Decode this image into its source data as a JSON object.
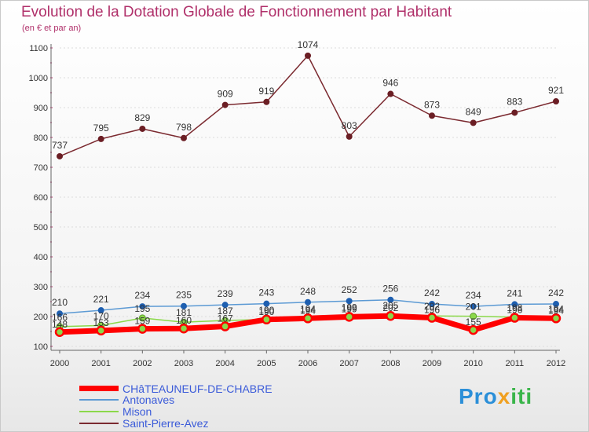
{
  "chart_data": {
    "type": "line",
    "title": "Evolution de la Dotation Globale de Fonctionnement par Habitant",
    "subtitle": "(en € et par an)",
    "xlabel": "",
    "ylabel": "",
    "ylim": [
      100,
      1100
    ],
    "yticks": [
      100,
      200,
      300,
      400,
      500,
      600,
      700,
      800,
      900,
      1000,
      1100
    ],
    "categories": [
      "2000",
      "2001",
      "2002",
      "2003",
      "2004",
      "2005",
      "2006",
      "2007",
      "2008",
      "2009",
      "2010",
      "2011",
      "2012"
    ],
    "series": [
      {
        "name": "Saint-Pierre-Avez",
        "color": "#7b2a30",
        "values": [
          737,
          795,
          829,
          798,
          909,
          919,
          1074,
          803,
          946,
          873,
          849,
          883,
          921
        ],
        "labels": [
          "737",
          "795",
          "829",
          "798",
          "909",
          "919",
          "1074",
          "803",
          "946",
          "873",
          "849",
          "883",
          "921"
        ]
      },
      {
        "name": "Antonaves",
        "color": "#5c9ad4",
        "values": [
          210,
          221,
          234,
          235,
          239,
          243,
          248,
          252,
          256,
          242,
          234,
          241,
          242
        ],
        "labels": [
          "210",
          "221",
          "234",
          "235",
          "239",
          "243",
          "248",
          "252",
          "256",
          "242",
          "234",
          "241",
          "242"
        ]
      },
      {
        "name": "Mison",
        "color": "#8bd84a",
        "values": [
          166,
          170,
          195,
          181,
          187,
          190,
          194,
          199,
          205,
          202,
          201,
          198,
          194
        ],
        "labels": [
          "166",
          "170",
          "195",
          "181",
          "187",
          "190",
          "194",
          "199",
          "205",
          "202",
          "201",
          "198",
          "194"
        ]
      },
      {
        "name": "CHâTEAUNEUF-DE-CHABRE",
        "color": "#ff0000",
        "values": [
          148,
          153,
          159,
          160,
          167,
          190,
          194,
          199,
          202,
          196,
          155,
          196,
          194
        ],
        "labels": [
          "148",
          "153",
          "159",
          "160",
          "167",
          "190",
          "194",
          "199",
          "202",
          "196",
          "155",
          "196",
          "194"
        ]
      }
    ],
    "legend": [
      "CHâTEAUNEUF-DE-CHABRE",
      "Antonaves",
      "Mison",
      "Saint-Pierre-Avez"
    ]
  },
  "branding": {
    "logo_a": "Pro",
    "logo_b": "x",
    "logo_c": "iti"
  }
}
